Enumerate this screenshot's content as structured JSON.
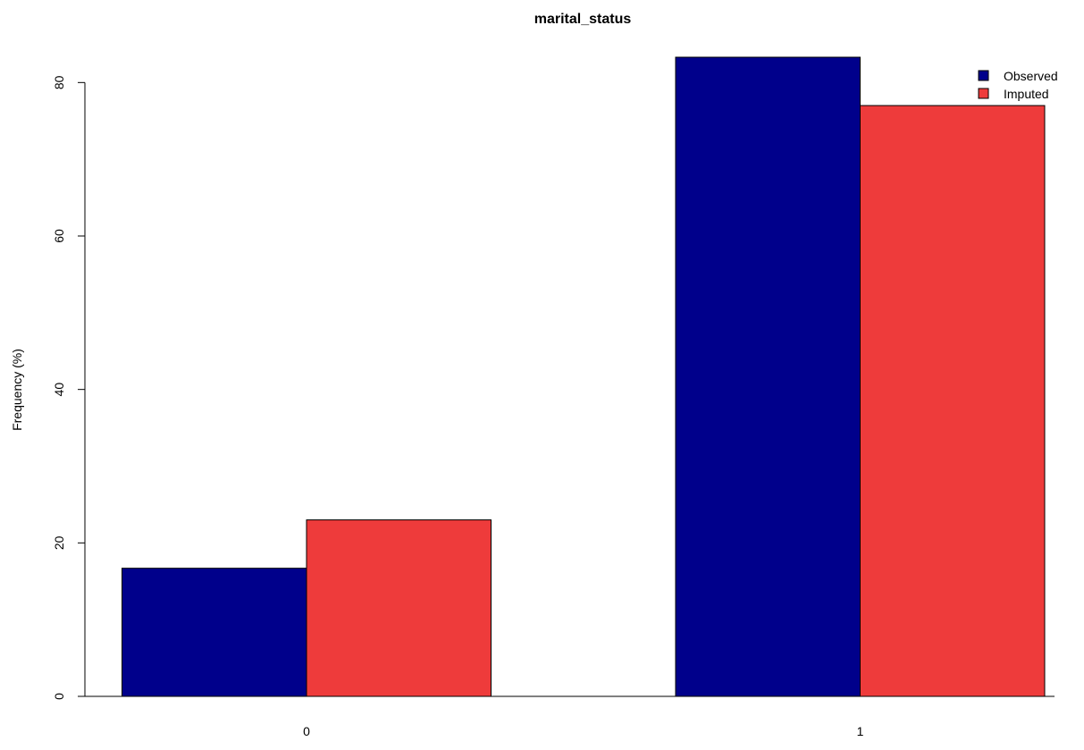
{
  "chart_data": {
    "type": "bar",
    "title": "marital_status",
    "xlabel": "",
    "ylabel": "Frequency (%)",
    "categories": [
      "0",
      "1"
    ],
    "series": [
      {
        "name": "Observed",
        "values": [
          16.7,
          83.3
        ],
        "color": "#00008B"
      },
      {
        "name": "Imputed",
        "values": [
          23.0,
          77.0
        ],
        "color": "#EE3B3B"
      }
    ],
    "ylim": [
      0,
      83.3
    ],
    "yticks": [
      0,
      20,
      40,
      60,
      80
    ],
    "grid": false,
    "legend_position": "top-right"
  }
}
